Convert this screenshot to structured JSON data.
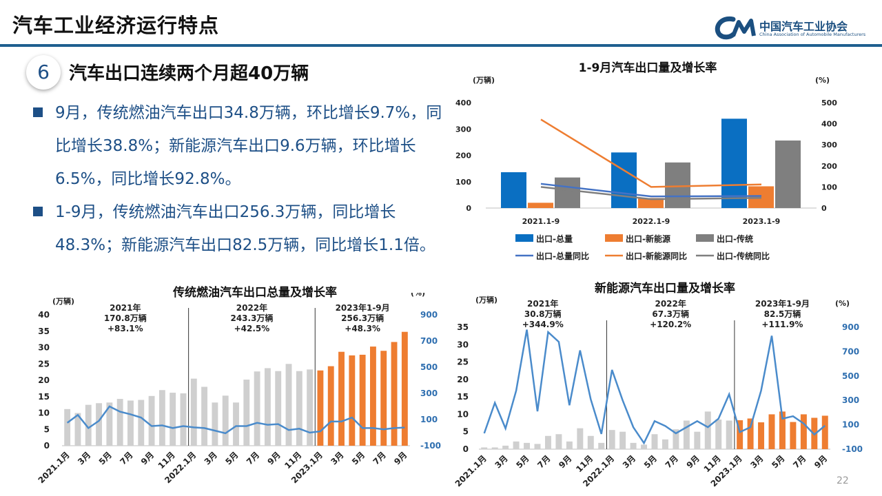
{
  "header": {
    "title": "汽车工业经济运行特点",
    "logo_cn": "中国汽车工业协会",
    "logo_en": "China Association of Automobile Manufacturers",
    "rule_color": "#1f5f8f"
  },
  "section": {
    "number": "6",
    "heading": "汽车出口连续两个月超40万辆"
  },
  "bullets": [
    "9月，传统燃油汽车出口34.8万辆，环比增长9.7%，同比增长38.8%；新能源汽车出口9.6万辆，环比增长6.5%，同比增长92.8%。",
    "1-9月，传统燃油汽车出口256.3万辆，同比增长48.3%；新能源汽车出口82.5万辆，同比增长1.1倍。"
  ],
  "page_number": "22",
  "colors": {
    "blue": "#0a6fc2",
    "orange": "#ee7d31",
    "gray": "#7f7f7f",
    "light_gray": "#cfcfcf",
    "line_blue": "#4a8bcb"
  },
  "chart_data": [
    {
      "id": "export-summary",
      "type": "bar",
      "title": "1-9月汽车出口量及增长率",
      "y_unit_left": "(万辆)",
      "y_unit_right": "(%)",
      "categories": [
        "2021.1-9",
        "2022.1-9",
        "2023.1-9"
      ],
      "ylim_left": [
        0,
        400
      ],
      "yticks_left": [
        "400",
        "300",
        "200",
        "100",
        "0"
      ],
      "ylim_right": [
        0,
        500
      ],
      "yticks_right": [
        "500",
        "400",
        "300",
        "200",
        "100",
        "0"
      ],
      "series": [
        {
          "name": "出口-总量",
          "kind": "bar",
          "axis": "left",
          "color": "#0a6fc2",
          "values": [
            136,
            211,
            339
          ]
        },
        {
          "name": "出口-新能源",
          "kind": "bar",
          "axis": "left",
          "color": "#ee7d31",
          "values": [
            20,
            38,
            82.5
          ]
        },
        {
          "name": "出口-传统",
          "kind": "bar",
          "axis": "left",
          "color": "#7f7f7f",
          "values": [
            116,
            173,
            256.3
          ]
        },
        {
          "name": "出口-总量同比",
          "kind": "line",
          "axis": "right",
          "color": "#4472c4",
          "values": [
            115,
            55,
            57
          ]
        },
        {
          "name": "出口-新能源同比",
          "kind": "line",
          "axis": "right",
          "color": "#ee7d31",
          "values": [
            420,
            100,
            112
          ]
        },
        {
          "name": "出口-传统同比",
          "kind": "line",
          "axis": "right",
          "color": "#7f7f7f",
          "values": [
            100,
            42,
            48
          ]
        }
      ],
      "legend_position": "bottom"
    },
    {
      "id": "ice-exports",
      "type": "bar",
      "title": "传统燃油汽车出口总量及增长率",
      "y_unit_left": "(万辆)",
      "y_unit_right": "(%)",
      "ylim_left": [
        0,
        40
      ],
      "yticks_left": [
        "40",
        "35",
        "30",
        "25",
        "20",
        "15",
        "10",
        "5",
        "0"
      ],
      "ylim_right": [
        -100,
        900
      ],
      "yticks_right": [
        "900",
        "700",
        "500",
        "300",
        "100",
        "-100"
      ],
      "x_tick_labels": [
        "2021.1月",
        "3月",
        "5月",
        "7月",
        "9月",
        "11月",
        "2022.1月",
        "3月",
        "5月",
        "7月",
        "9月",
        "11月",
        "2023.1月",
        "3月",
        "5月",
        "7月",
        "9月"
      ],
      "x_tick_every": 2,
      "periods": [
        {
          "label": "2021年",
          "total": "170.8万辆",
          "growth": "+83.1%"
        },
        {
          "label": "2022年",
          "total": "243.3万辆",
          "growth": "+42.5%"
        },
        {
          "label": "2023年1-9月",
          "total": "256.3万辆",
          "growth": "+48.3%"
        }
      ],
      "bars": [
        11.2,
        10.0,
        12.5,
        13.0,
        13.2,
        14.3,
        13.8,
        14.0,
        15.2,
        17.0,
        16.2,
        16.0,
        20.5,
        18.0,
        13.2,
        15.3,
        13.2,
        20.2,
        22.7,
        23.7,
        22.8,
        25.0,
        22.8,
        23.3,
        23.0,
        24.3,
        28.7,
        27.6,
        27.8,
        30.3,
        29.0,
        31.7,
        34.8
      ],
      "bar_split_index": 24,
      "growth_line": [
        75,
        135,
        35,
        90,
        200,
        160,
        140,
        115,
        50,
        55,
        35,
        50,
        40,
        35,
        15,
        -5,
        50,
        50,
        75,
        60,
        65,
        20,
        30,
        0,
        10,
        85,
        85,
        115,
        35,
        35,
        25,
        35,
        38.8
      ]
    },
    {
      "id": "nev-exports",
      "type": "bar",
      "title": "新能源汽车出口量及增长率",
      "y_unit_left": "(万辆)",
      "y_unit_right": "(%)",
      "ylim_left": [
        0,
        35
      ],
      "yticks_left": [
        "35",
        "30",
        "25",
        "20",
        "15",
        "10",
        "5",
        "0"
      ],
      "ylim_right": [
        -100,
        900
      ],
      "yticks_right": [
        "900",
        "700",
        "500",
        "300",
        "100",
        "-100"
      ],
      "x_tick_labels": [
        "2021.1月",
        "3月",
        "5月",
        "7月",
        "9月",
        "11月",
        "2022.1月",
        "3月",
        "5月",
        "7月",
        "9月",
        "11月",
        "2023.1月",
        "3月",
        "5月",
        "7月",
        "9月"
      ],
      "x_tick_every": 2,
      "periods": [
        {
          "label": "2021年",
          "total": "30.8万辆",
          "growth": "+344.9%"
        },
        {
          "label": "2022年",
          "total": "67.3万辆",
          "growth": "+120.2%"
        },
        {
          "label": "2023年1-9月",
          "total": "82.5万辆",
          "growth": "+111.9%"
        }
      ],
      "bars": [
        0.5,
        0.5,
        1.0,
        2.2,
        1.8,
        1.5,
        3.8,
        4.3,
        2.2,
        6.0,
        3.8,
        1.8,
        5.5,
        5.0,
        1.8,
        1.3,
        4.3,
        2.8,
        5.7,
        8.2,
        5.0,
        10.8,
        8.5,
        8.2,
        8.3,
        8.8,
        7.7,
        10.0,
        10.8,
        7.8,
        10.0,
        9.0,
        9.6
      ],
      "bar_split_index": 24,
      "growth_line": [
        30,
        280,
        70,
        380,
        880,
        210,
        860,
        780,
        260,
        710,
        310,
        25,
        550,
        300,
        80,
        -50,
        130,
        90,
        30,
        80,
        130,
        80,
        150,
        350,
        40,
        80,
        380,
        830,
        150,
        170,
        110,
        20,
        92.8
      ]
    }
  ]
}
